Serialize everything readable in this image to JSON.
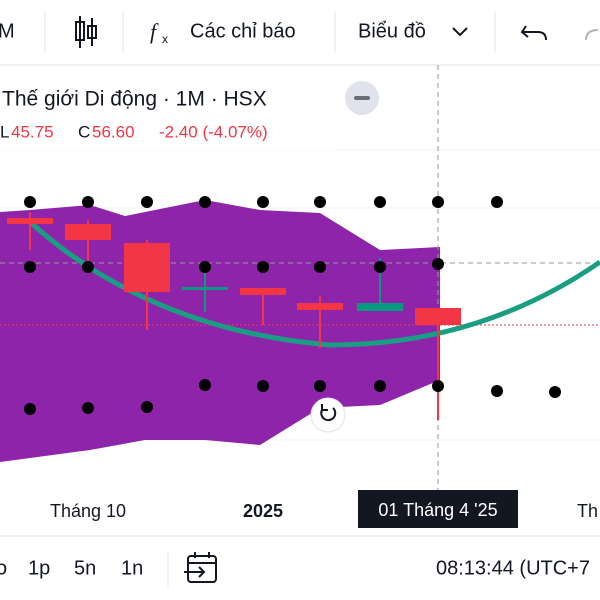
{
  "toolbar": {
    "interval": "M",
    "indicators": "Các chỉ báo",
    "chart_type": "Biểu đồ"
  },
  "header": {
    "title": "Thế giới Di động · 1M · HSX",
    "low_label": "L",
    "low": "45.75",
    "close_label": "C",
    "close": "56.60",
    "change": "-2.40 (-4.07%)"
  },
  "x_axis": {
    "labels": [
      "Tháng 10",
      "2025"
    ],
    "crosshair": "01 Tháng 4 '25",
    "partial": "Th"
  },
  "bottom_bar": {
    "ranges": [
      "o",
      "1p",
      "5n",
      "1n"
    ],
    "clock": "08:13:44 (UTC+7"
  }
}
